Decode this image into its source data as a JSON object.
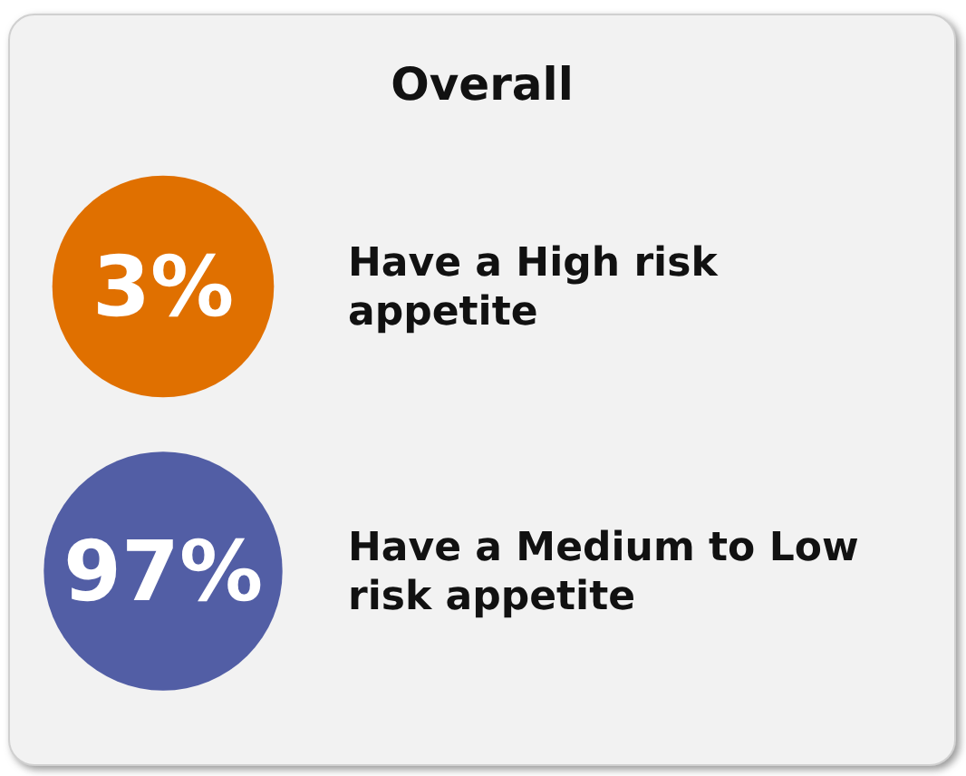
{
  "chart_data": {
    "type": "other",
    "title": "Overall",
    "categories": [
      "Have a High risk appetite",
      "Have a Medium to Low risk appetite"
    ],
    "values": [
      3,
      97
    ],
    "value_labels": [
      "3%",
      "97%"
    ],
    "colors": [
      "#e07000",
      "#525ea5"
    ]
  }
}
